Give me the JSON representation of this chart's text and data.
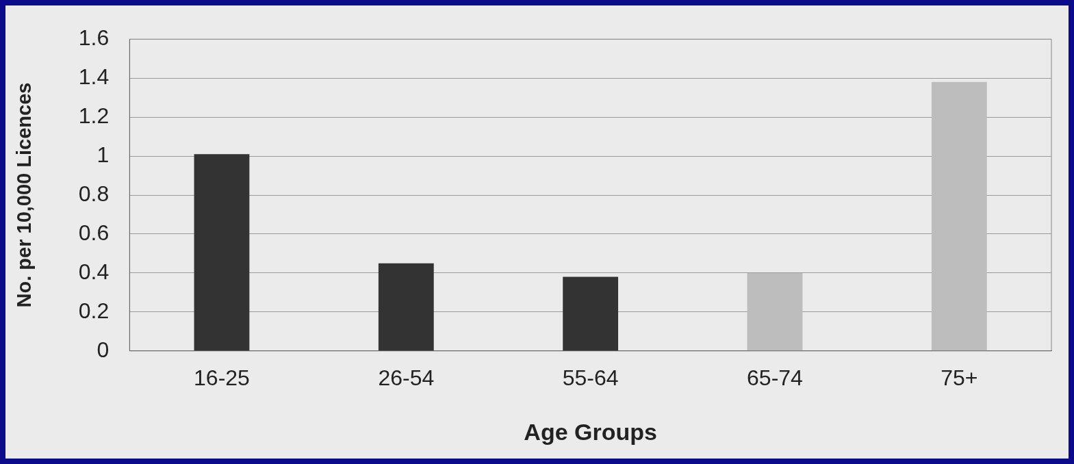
{
  "chart_data": {
    "type": "bar",
    "xlabel": "Age Groups",
    "ylabel": "No. per 10,000 Licences",
    "categories": [
      "16-25",
      "26-54",
      "55-64",
      "65-74",
      "75+"
    ],
    "values": [
      1.01,
      0.45,
      0.38,
      0.4,
      1.38
    ],
    "colors": [
      "#333333",
      "#333333",
      "#333333",
      "#bdbdbd",
      "#bdbdbd"
    ],
    "ylim": [
      0,
      1.6
    ],
    "yticks": [
      0,
      0.2,
      0.4,
      0.6,
      0.8,
      1,
      1.2,
      1.4,
      1.6
    ],
    "grid": "y",
    "legend": false
  }
}
